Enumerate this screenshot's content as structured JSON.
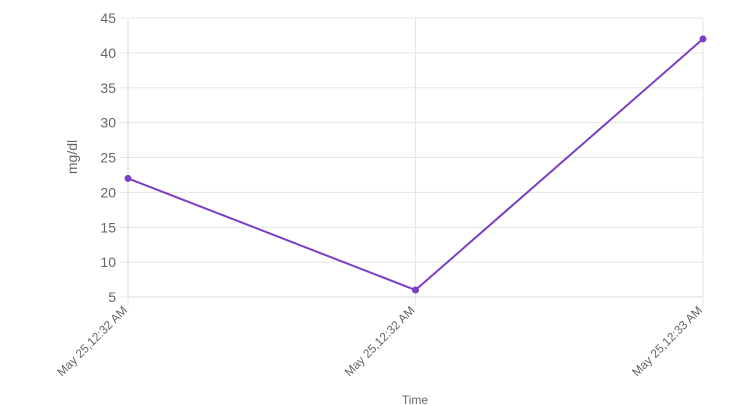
{
  "chart_data": {
    "type": "line",
    "categories": [
      "May 25,12:32 AM",
      "May 25,12:32 AM",
      "May 25,12:33 AM"
    ],
    "series": [
      {
        "values": [
          22,
          6,
          42
        ],
        "color": "#7b3fc6"
      }
    ],
    "xlabel": "Time",
    "ylabel": "mg/dl",
    "ylim": [
      5,
      45
    ],
    "yticks": [
      5,
      10,
      15,
      20,
      25,
      30,
      35,
      40,
      45
    ],
    "grid": true,
    "legend": "none"
  },
  "colors": {
    "grid": "#e5e5e5",
    "axis": "#d9d9d9",
    "text": "#666666",
    "line": "#7b3fc6"
  }
}
